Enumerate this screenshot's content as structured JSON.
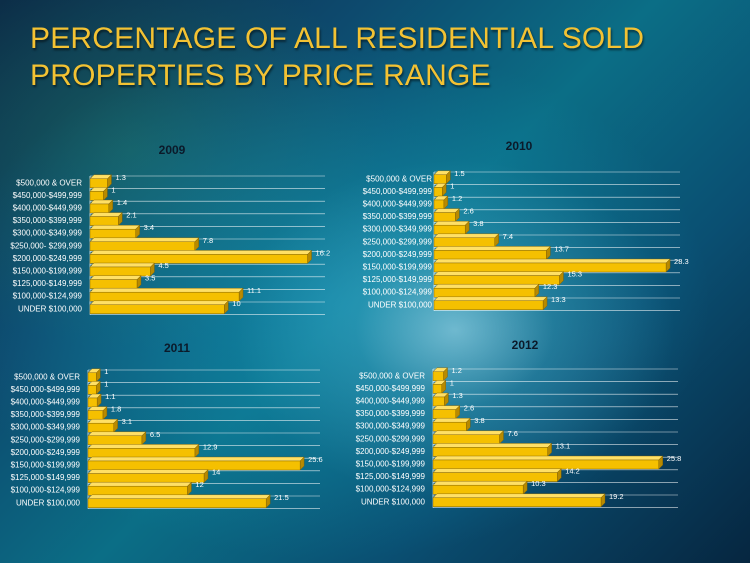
{
  "slide": {
    "title_line1": "PERCENTAGE OF ALL RESIDENTIAL SOLD",
    "title_line2": "PROPERTIES BY PRICE RANGE"
  },
  "colors": {
    "title": "#f3c233",
    "bar_front": "#f5c000",
    "bar_top": "#ffe066",
    "bar_side": "#b88a00",
    "text": "#ffffff",
    "chart_title": "#0b1a2a"
  },
  "chart_data": [
    {
      "type": "bar",
      "orientation": "horizontal",
      "style": "3d",
      "title": "2009",
      "categories": [
        "$500,000 & OVER",
        "$450,000-$499,999",
        "$400,000-$449,999",
        "$350,000-$399,999",
        "$300,000-$349,999",
        "$250,000- $299,999",
        "$200,000-$249,999",
        "$150,000-$199,999",
        "$125,000-$149,999",
        "$100,000-$124,999",
        "UNDER $100,000"
      ],
      "values": [
        1.3,
        1,
        1.4,
        2.1,
        3.4,
        7.8,
        16.2,
        4.5,
        3.5,
        11.1,
        10
      ],
      "labels": [
        "1.3",
        "1",
        "1.4",
        "2.1",
        "3.4",
        "7.8",
        "16.2",
        "4.5",
        "3.5",
        "11.1",
        "10"
      ],
      "xlim": [
        0,
        17.5
      ],
      "grid": true
    },
    {
      "type": "bar",
      "orientation": "horizontal",
      "style": "3d",
      "title": "2010",
      "categories": [
        "$500,000 & OVER",
        "$450,000-$499,999",
        "$400,000-$449,999",
        "$350,000-$399,999",
        "$300,000-$349,999",
        "$250,000-$299,999",
        "$200,000-$249,999",
        "$150,000-$199,999",
        "$125,000-$149,999",
        "$100,000-$124,999",
        "UNDER $100,000"
      ],
      "values": [
        1.5,
        1,
        1.2,
        2.6,
        3.8,
        7.4,
        13.7,
        28.3,
        15.3,
        12.3,
        13.3
      ],
      "labels": [
        "1.5",
        "1",
        "1.2",
        "2.6",
        "3.8",
        "7.4",
        "13.7",
        "28.3",
        "15.3",
        "12.3",
        "13.3"
      ],
      "xlim": [
        0,
        30
      ],
      "grid": true
    },
    {
      "type": "bar",
      "orientation": "horizontal",
      "style": "3d",
      "title": "2011",
      "categories": [
        "$500,000 & OVER",
        "$450,000-$499,999",
        "$400,000-$449,999",
        "$350,000-$399,999",
        "$300,000-$349,999",
        "$250,000-$299,999",
        "$200,000-$249,999",
        "$150,000-$199,999",
        "$125,000-$149,999",
        "$100,000-$124,999",
        "UNDER $100,000"
      ],
      "values": [
        1,
        1,
        1.1,
        1.8,
        3.1,
        6.5,
        12.9,
        25.6,
        14,
        12,
        21.5
      ],
      "labels": [
        "1",
        "1",
        "1.1",
        "1.8",
        "3.1",
        "6.5",
        "12.9",
        "25.6",
        "14",
        "12",
        "21.5"
      ],
      "xlim": [
        0,
        28
      ],
      "grid": true
    },
    {
      "type": "bar",
      "orientation": "horizontal",
      "style": "3d",
      "title": "2012",
      "categories": [
        "$500,000 & OVER",
        "$450,000-$499,999",
        "$400,000-$449,999",
        "$350,000-$399,999",
        "$300,000-$349,999",
        "$250,000-$299,999",
        "$200,000-$249,999",
        "$150,000-$199,999",
        "$125,000-$149,999",
        "$100,000-$124,999",
        "UNDER $100,000"
      ],
      "values": [
        1.2,
        1,
        1.3,
        2.6,
        3.8,
        7.6,
        13.1,
        25.8,
        14.2,
        10.3,
        19.2
      ],
      "labels": [
        "1.2",
        "1",
        "1.3",
        "2.6",
        "3.8",
        "7.6",
        "13.1",
        "25.8",
        "14.2",
        "10.3",
        "19.2"
      ],
      "xlim": [
        0,
        28
      ],
      "grid": true
    }
  ]
}
